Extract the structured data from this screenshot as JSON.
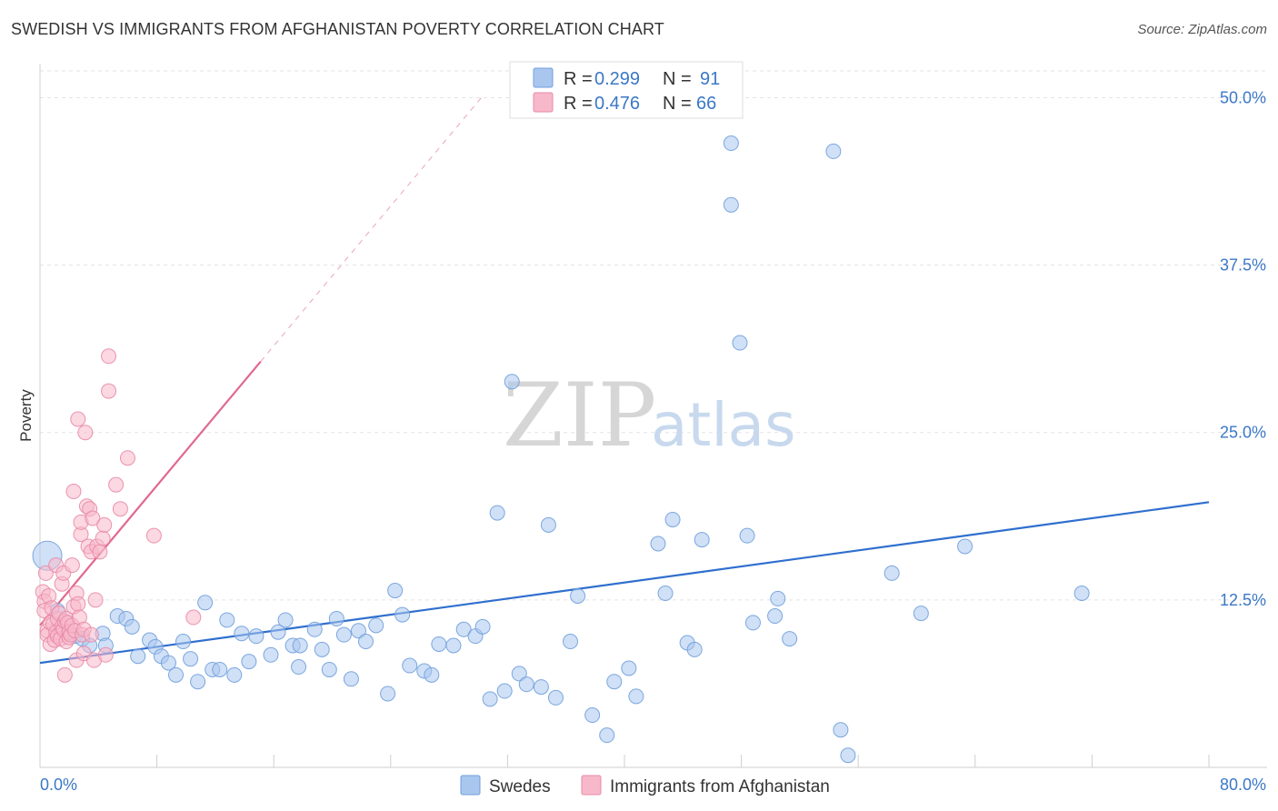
{
  "title": "SWEDISH VS IMMIGRANTS FROM AFGHANISTAN POVERTY CORRELATION CHART",
  "source": "Source: ZipAtlas.com",
  "watermark": {
    "zip": "ZIP",
    "atlas": "atlas"
  },
  "colors": {
    "blue_fill": "#a9c7ee",
    "blue_stroke": "#6f9fdc",
    "blue_line": "#2f6fce",
    "pink_fill": "#f7b8cb",
    "pink_stroke": "#e88aa6",
    "pink_line": "#e0688f",
    "grid": "#e3e3e3",
    "axis_text": "#3b78c6"
  },
  "legend": {
    "r_label": "R =",
    "n_label": "N =",
    "series": [
      {
        "name": "Swedes",
        "r": "0.299",
        "n": "91"
      },
      {
        "name": "Immigrants from Afghanistan",
        "r": "0.476",
        "n": "66"
      }
    ]
  },
  "chart_data": {
    "type": "scatter",
    "title": "SWEDISH VS IMMIGRANTS FROM AFGHANISTAN POVERTY CORRELATION CHART",
    "xlabel": "",
    "ylabel": "Poverty",
    "xlim": [
      0,
      80
    ],
    "ylim": [
      0,
      52
    ],
    "x_tick_labels": [
      "0.0%",
      "80.0%"
    ],
    "y_ticks": [
      12.5,
      25.0,
      37.5,
      50.0
    ],
    "y_tick_labels": [
      "12.5%",
      "25.0%",
      "37.5%",
      "50.0%"
    ],
    "grid": true,
    "legend_position": "top-center",
    "series": [
      {
        "name": "Swedes",
        "color": "#a9c7ee",
        "trend": {
          "x": [
            0,
            80
          ],
          "y": [
            7.8,
            19.8
          ]
        },
        "points": [
          [
            0.5,
            15.8
          ],
          [
            1.2,
            11.7
          ],
          [
            1.9,
            10.0
          ],
          [
            2.4,
            9.8
          ],
          [
            2.9,
            9.6
          ],
          [
            3.4,
            9.1
          ],
          [
            4.3,
            10.0
          ],
          [
            4.5,
            9.1
          ],
          [
            5.3,
            11.3
          ],
          [
            5.9,
            11.1
          ],
          [
            6.3,
            10.5
          ],
          [
            6.7,
            8.3
          ],
          [
            7.5,
            9.5
          ],
          [
            7.9,
            9.0
          ],
          [
            8.3,
            8.3
          ],
          [
            8.8,
            7.8
          ],
          [
            9.3,
            6.9
          ],
          [
            9.8,
            9.4
          ],
          [
            10.3,
            8.1
          ],
          [
            10.8,
            6.4
          ],
          [
            11.3,
            12.3
          ],
          [
            11.8,
            7.3
          ],
          [
            12.3,
            7.3
          ],
          [
            12.8,
            11.0
          ],
          [
            13.3,
            6.9
          ],
          [
            13.8,
            10.0
          ],
          [
            14.3,
            7.9
          ],
          [
            14.8,
            9.8
          ],
          [
            15.8,
            8.4
          ],
          [
            16.3,
            10.1
          ],
          [
            16.8,
            11.0
          ],
          [
            17.3,
            9.1
          ],
          [
            17.8,
            9.1
          ],
          [
            17.7,
            7.5
          ],
          [
            18.8,
            10.3
          ],
          [
            19.3,
            8.8
          ],
          [
            19.8,
            7.3
          ],
          [
            20.3,
            11.1
          ],
          [
            20.8,
            9.9
          ],
          [
            21.3,
            6.6
          ],
          [
            21.8,
            10.2
          ],
          [
            22.3,
            9.4
          ],
          [
            23.0,
            10.6
          ],
          [
            23.8,
            5.5
          ],
          [
            24.3,
            13.2
          ],
          [
            24.8,
            11.4
          ],
          [
            25.3,
            7.6
          ],
          [
            26.3,
            7.2
          ],
          [
            26.8,
            6.9
          ],
          [
            27.3,
            9.2
          ],
          [
            28.3,
            9.1
          ],
          [
            29.0,
            10.3
          ],
          [
            29.8,
            9.8
          ],
          [
            30.3,
            10.5
          ],
          [
            30.8,
            5.1
          ],
          [
            31.3,
            19.0
          ],
          [
            31.8,
            5.7
          ],
          [
            32.3,
            28.8
          ],
          [
            32.8,
            7.0
          ],
          [
            33.3,
            6.2
          ],
          [
            34.3,
            6.0
          ],
          [
            34.8,
            18.1
          ],
          [
            35.3,
            5.2
          ],
          [
            36.3,
            9.4
          ],
          [
            36.8,
            12.8
          ],
          [
            37.8,
            3.9
          ],
          [
            38.8,
            2.4
          ],
          [
            39.3,
            6.4
          ],
          [
            40.3,
            7.4
          ],
          [
            40.8,
            5.3
          ],
          [
            42.3,
            16.7
          ],
          [
            42.8,
            13.0
          ],
          [
            43.3,
            18.5
          ],
          [
            44.3,
            9.3
          ],
          [
            44.8,
            8.8
          ],
          [
            45.3,
            17.0
          ],
          [
            47.3,
            42.0
          ],
          [
            47.3,
            46.6
          ],
          [
            47.9,
            31.7
          ],
          [
            48.4,
            17.3
          ],
          [
            48.8,
            10.8
          ],
          [
            50.3,
            11.3
          ],
          [
            50.5,
            12.6
          ],
          [
            51.3,
            9.6
          ],
          [
            54.3,
            46.0
          ],
          [
            54.8,
            2.8
          ],
          [
            55.3,
            0.9
          ],
          [
            58.3,
            14.5
          ],
          [
            60.3,
            11.5
          ],
          [
            63.3,
            16.5
          ],
          [
            71.3,
            13.0
          ]
        ]
      },
      {
        "name": "Immigrants from Afghanistan",
        "color": "#f7b8cb",
        "trend": {
          "x": [
            0,
            15.1
          ],
          "y": [
            10.6,
            30.3
          ]
        },
        "trend_dashed": {
          "x": [
            15.1,
            30.2
          ],
          "y": [
            30.3,
            50.0
          ]
        },
        "points": [
          [
            0.2,
            13.1
          ],
          [
            0.3,
            12.4
          ],
          [
            0.3,
            11.7
          ],
          [
            0.4,
            14.5
          ],
          [
            0.5,
            10.2
          ],
          [
            0.5,
            9.9
          ],
          [
            0.6,
            12.8
          ],
          [
            0.7,
            9.2
          ],
          [
            0.7,
            10.8
          ],
          [
            0.8,
            11.9
          ],
          [
            0.9,
            10.7
          ],
          [
            1.0,
            9.5
          ],
          [
            1.1,
            15.1
          ],
          [
            1.1,
            10.1
          ],
          [
            1.2,
            9.8
          ],
          [
            1.2,
            11.1
          ],
          [
            1.3,
            11.5
          ],
          [
            1.4,
            9.6
          ],
          [
            1.5,
            10.5
          ],
          [
            1.5,
            13.7
          ],
          [
            1.6,
            14.5
          ],
          [
            1.6,
            10.3
          ],
          [
            1.7,
            10.9
          ],
          [
            1.7,
            6.9
          ],
          [
            1.8,
            11.1
          ],
          [
            1.8,
            9.4
          ],
          [
            1.9,
            10.8
          ],
          [
            2.0,
            10.1
          ],
          [
            2.0,
            9.7
          ],
          [
            2.1,
            9.9
          ],
          [
            2.2,
            10.6
          ],
          [
            2.2,
            15.1
          ],
          [
            2.3,
            12.0
          ],
          [
            2.3,
            20.6
          ],
          [
            2.4,
            10.2
          ],
          [
            2.5,
            13.0
          ],
          [
            2.5,
            8.0
          ],
          [
            2.6,
            12.2
          ],
          [
            2.6,
            26.0
          ],
          [
            2.7,
            11.2
          ],
          [
            2.8,
            17.4
          ],
          [
            2.8,
            18.3
          ],
          [
            2.9,
            9.9
          ],
          [
            3.0,
            8.5
          ],
          [
            3.0,
            10.3
          ],
          [
            3.1,
            25.0
          ],
          [
            3.2,
            19.5
          ],
          [
            3.3,
            16.5
          ],
          [
            3.4,
            19.3
          ],
          [
            3.5,
            9.9
          ],
          [
            3.5,
            16.1
          ],
          [
            3.6,
            18.6
          ],
          [
            3.7,
            8.0
          ],
          [
            3.8,
            12.5
          ],
          [
            3.9,
            16.5
          ],
          [
            4.1,
            16.1
          ],
          [
            4.3,
            17.1
          ],
          [
            4.4,
            18.1
          ],
          [
            4.5,
            8.4
          ],
          [
            4.7,
            30.7
          ],
          [
            4.7,
            28.1
          ],
          [
            5.2,
            21.1
          ],
          [
            5.5,
            19.3
          ],
          [
            6.0,
            23.1
          ],
          [
            7.8,
            17.3
          ],
          [
            10.5,
            11.2
          ]
        ]
      }
    ]
  }
}
